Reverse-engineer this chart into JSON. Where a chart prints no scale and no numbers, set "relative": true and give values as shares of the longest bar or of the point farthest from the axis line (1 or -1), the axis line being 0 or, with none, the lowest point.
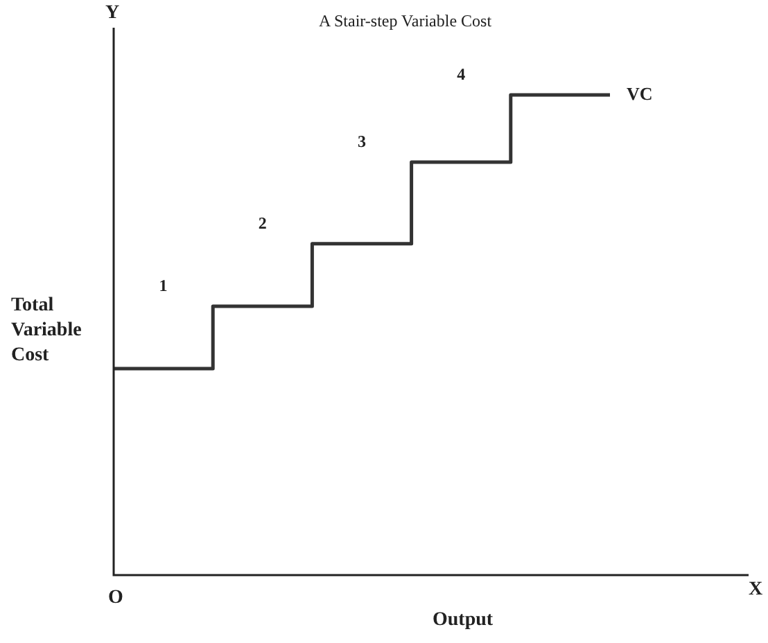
{
  "chart_data": {
    "type": "step",
    "title": "A Stair-step Variable Cost",
    "xlabel": "Output",
    "ylabel": "Total Variable Cost",
    "relative": true,
    "tick_labels": false,
    "legend": false,
    "marker": "none",
    "line_style": "solid",
    "categories": [
      null,
      null,
      null,
      null,
      null,
      null
    ],
    "series": [
      {
        "name": "VC",
        "color": "#333333",
        "values": [
          0.43,
          0.56,
          0.69,
          0.86,
          1,
          1
        ]
      }
    ],
    "annotations": [
      "Y",
      "X",
      "O",
      "1",
      "2",
      "3",
      "4"
    ]
  }
}
